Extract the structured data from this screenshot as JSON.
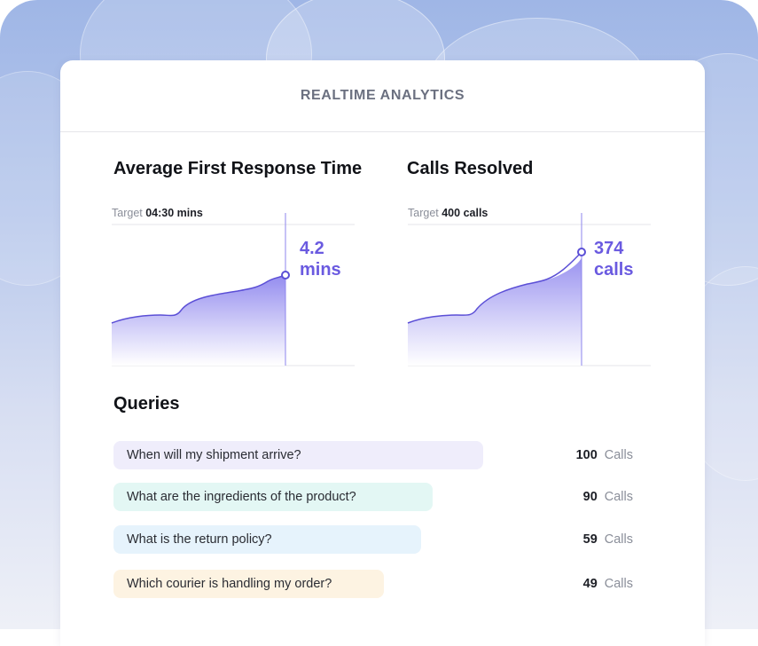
{
  "header": {
    "title": "REALTIME ANALYTICS"
  },
  "metrics": [
    {
      "title": "Average First Response Time",
      "target_label": "Target",
      "target_value": "04:30 mins",
      "value_line1": "4.2",
      "value_line2": "mins"
    },
    {
      "title": "Calls Resolved",
      "target_label": "Target",
      "target_value": "400 calls",
      "value_line1": "374",
      "value_line2": "calls"
    }
  ],
  "queries": {
    "title": "Queries",
    "items": [
      {
        "question": "When will my shipment arrive?",
        "count": "100",
        "unit": "Calls",
        "color": "#efedfb"
      },
      {
        "question": "What are the ingredients of the product?",
        "count": "90",
        "unit": "Calls",
        "color": "#e3f7f4"
      },
      {
        "question": "What is the return policy?",
        "count": "59",
        "unit": "Calls",
        "color": "#e6f3fc"
      },
      {
        "question": "Which courier is handling my order?",
        "count": "49",
        "unit": "Calls",
        "color": "#fdf3e2"
      }
    ]
  },
  "colors": {
    "accent": "#6a5ae0",
    "line": "#5b4fd6",
    "fill": "#8e86ee"
  }
}
